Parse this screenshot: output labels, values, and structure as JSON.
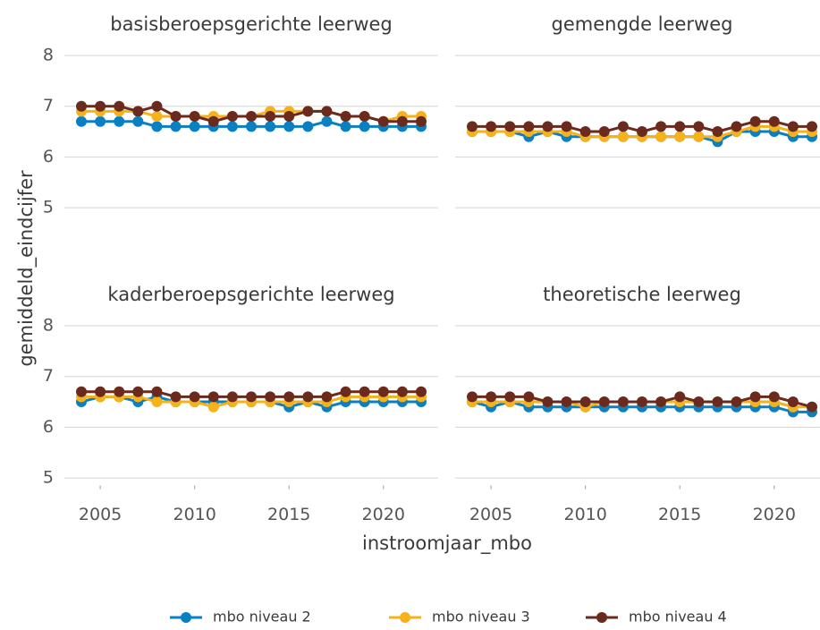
{
  "chart_data": [
    {
      "type": "line",
      "title": "basisberoepsgerichte leerweg",
      "ylabel": "gemiddeld_eindcijfer",
      "xlabel": "instroomjaar_mbo",
      "x": [
        2004,
        2005,
        2006,
        2007,
        2008,
        2009,
        2010,
        2011,
        2012,
        2013,
        2014,
        2015,
        2016,
        2017,
        2018,
        2019,
        2020,
        2021,
        2022
      ],
      "xlim": [
        2003.1,
        2022.9
      ],
      "ylim": [
        4.85,
        8.3
      ],
      "yticks": [
        5,
        6,
        7,
        8
      ],
      "grid": true,
      "series": [
        {
          "name": "mbo niveau 2",
          "color": "#0a7fc2",
          "values": [
            6.7,
            6.7,
            6.7,
            6.7,
            6.6,
            6.6,
            6.6,
            6.6,
            6.6,
            6.6,
            6.6,
            6.6,
            6.6,
            6.7,
            6.6,
            6.6,
            6.6,
            6.6,
            6.6
          ]
        },
        {
          "name": "mbo niveau 3",
          "color": "#f5b21a",
          "values": [
            6.9,
            6.9,
            6.9,
            6.9,
            6.8,
            6.8,
            6.8,
            6.8,
            6.8,
            6.8,
            6.9,
            6.9,
            6.9,
            6.9,
            6.8,
            6.8,
            6.7,
            6.8,
            6.8
          ]
        },
        {
          "name": "mbo niveau 4",
          "color": "#6b2a1e",
          "values": [
            7.0,
            7.0,
            7.0,
            6.9,
            7.0,
            6.8,
            6.8,
            6.7,
            6.8,
            6.8,
            6.8,
            6.8,
            6.9,
            6.9,
            6.8,
            6.8,
            6.7,
            6.7,
            6.7
          ]
        }
      ]
    },
    {
      "type": "line",
      "title": "gemengde leerweg",
      "x": [
        2004,
        2005,
        2006,
        2007,
        2008,
        2009,
        2010,
        2011,
        2012,
        2013,
        2014,
        2015,
        2016,
        2017,
        2018,
        2019,
        2020,
        2021,
        2022
      ],
      "xlim": [
        2003.1,
        2022.9
      ],
      "ylim": [
        4.85,
        8.3
      ],
      "yticks": [
        5,
        6,
        7,
        8
      ],
      "grid": true,
      "series": [
        {
          "name": "mbo niveau 2",
          "color": "#0a7fc2",
          "values": [
            6.5,
            6.5,
            6.5,
            6.4,
            6.5,
            6.4,
            6.4,
            6.4,
            6.4,
            6.4,
            6.4,
            6.4,
            6.4,
            6.3,
            6.5,
            6.5,
            6.5,
            6.4,
            6.4
          ]
        },
        {
          "name": "mbo niveau 3",
          "color": "#f5b21a",
          "values": [
            6.5,
            6.5,
            6.5,
            6.5,
            6.5,
            6.5,
            6.4,
            6.4,
            6.4,
            6.4,
            6.4,
            6.4,
            6.4,
            6.4,
            6.5,
            6.6,
            6.6,
            6.5,
            6.5
          ]
        },
        {
          "name": "mbo niveau 4",
          "color": "#6b2a1e",
          "values": [
            6.6,
            6.6,
            6.6,
            6.6,
            6.6,
            6.6,
            6.5,
            6.5,
            6.6,
            6.5,
            6.6,
            6.6,
            6.6,
            6.5,
            6.6,
            6.7,
            6.7,
            6.6,
            6.6
          ]
        }
      ]
    },
    {
      "type": "line",
      "title": "kaderberoepsgerichte leerweg",
      "x": [
        2004,
        2005,
        2006,
        2007,
        2008,
        2009,
        2010,
        2011,
        2012,
        2013,
        2014,
        2015,
        2016,
        2017,
        2018,
        2019,
        2020,
        2021,
        2022
      ],
      "xlim": [
        2003.1,
        2022.9
      ],
      "ylim": [
        4.85,
        8.3
      ],
      "xticks": [
        2005,
        2010,
        2015,
        2020
      ],
      "yticks": [
        5,
        6,
        7,
        8
      ],
      "grid": true,
      "series": [
        {
          "name": "mbo niveau 2",
          "color": "#0a7fc2",
          "values": [
            6.5,
            6.6,
            6.6,
            6.5,
            6.6,
            6.5,
            6.5,
            6.5,
            6.5,
            6.5,
            6.5,
            6.4,
            6.5,
            6.4,
            6.5,
            6.5,
            6.5,
            6.5,
            6.5
          ]
        },
        {
          "name": "mbo niveau 3",
          "color": "#f5b21a",
          "values": [
            6.6,
            6.6,
            6.6,
            6.6,
            6.5,
            6.5,
            6.5,
            6.4,
            6.5,
            6.5,
            6.5,
            6.5,
            6.5,
            6.5,
            6.6,
            6.6,
            6.6,
            6.6,
            6.6
          ]
        },
        {
          "name": "mbo niveau 4",
          "color": "#6b2a1e",
          "values": [
            6.7,
            6.7,
            6.7,
            6.7,
            6.7,
            6.6,
            6.6,
            6.6,
            6.6,
            6.6,
            6.6,
            6.6,
            6.6,
            6.6,
            6.7,
            6.7,
            6.7,
            6.7,
            6.7
          ]
        }
      ]
    },
    {
      "type": "line",
      "title": "theoretische leerweg",
      "x": [
        2004,
        2005,
        2006,
        2007,
        2008,
        2009,
        2010,
        2011,
        2012,
        2013,
        2014,
        2015,
        2016,
        2017,
        2018,
        2019,
        2020,
        2021,
        2022
      ],
      "xlim": [
        2003.1,
        2022.9
      ],
      "ylim": [
        4.85,
        8.3
      ],
      "xticks": [
        2005,
        2010,
        2015,
        2020
      ],
      "yticks": [
        5,
        6,
        7,
        8
      ],
      "grid": true,
      "series": [
        {
          "name": "mbo niveau 2",
          "color": "#0a7fc2",
          "values": [
            6.5,
            6.4,
            6.5,
            6.4,
            6.4,
            6.4,
            6.4,
            6.4,
            6.4,
            6.4,
            6.4,
            6.4,
            6.4,
            6.4,
            6.4,
            6.4,
            6.4,
            6.3,
            6.3
          ]
        },
        {
          "name": "mbo niveau 3",
          "color": "#f5b21a",
          "values": [
            6.5,
            6.5,
            6.5,
            6.5,
            6.5,
            6.5,
            6.4,
            6.5,
            6.5,
            6.5,
            6.5,
            6.5,
            6.5,
            6.5,
            6.5,
            6.5,
            6.5,
            6.4,
            6.4
          ]
        },
        {
          "name": "mbo niveau 4",
          "color": "#6b2a1e",
          "values": [
            6.6,
            6.6,
            6.6,
            6.6,
            6.5,
            6.5,
            6.5,
            6.5,
            6.5,
            6.5,
            6.5,
            6.6,
            6.5,
            6.5,
            6.5,
            6.6,
            6.6,
            6.5,
            6.4
          ]
        }
      ]
    }
  ]
}
